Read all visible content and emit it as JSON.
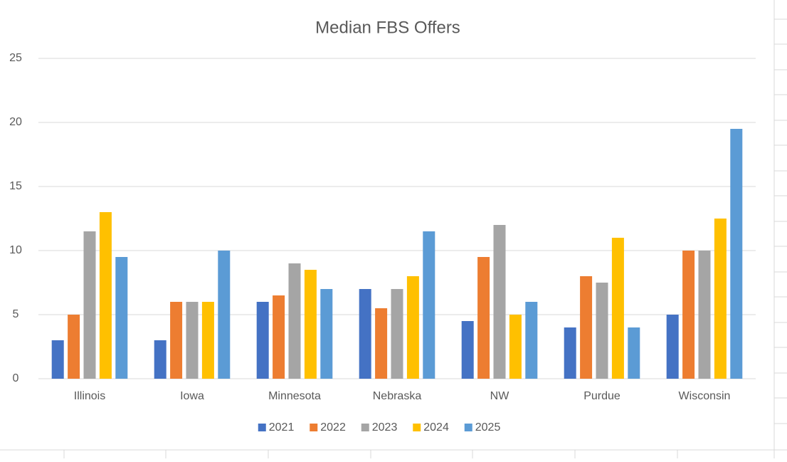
{
  "chart_data": {
    "type": "bar",
    "title": "Median FBS Offers",
    "categories": [
      "Illinois",
      "Iowa",
      "Minnesota",
      "Nebraska",
      "NW",
      "Purdue",
      "Wisconsin"
    ],
    "series": [
      {
        "name": "2021",
        "color": "#4472c4",
        "values": [
          3,
          3,
          6,
          7,
          4.5,
          4,
          5
        ]
      },
      {
        "name": "2022",
        "color": "#ed7d31",
        "values": [
          5,
          6,
          6.5,
          5.5,
          9.5,
          8,
          10
        ]
      },
      {
        "name": "2023",
        "color": "#a5a5a5",
        "values": [
          11.5,
          6,
          9,
          7,
          12,
          7.5,
          10
        ]
      },
      {
        "name": "2024",
        "color": "#ffc000",
        "values": [
          13,
          6,
          8.5,
          8,
          5,
          11,
          12.5
        ]
      },
      {
        "name": "2025",
        "color": "#5b9bd5",
        "values": [
          9.5,
          10,
          7,
          11.5,
          6,
          4,
          19.5
        ]
      }
    ],
    "ylim": [
      0,
      25
    ],
    "yticks": [
      0,
      5,
      10,
      15,
      20,
      25
    ],
    "grid": true,
    "legend": "bottom"
  }
}
